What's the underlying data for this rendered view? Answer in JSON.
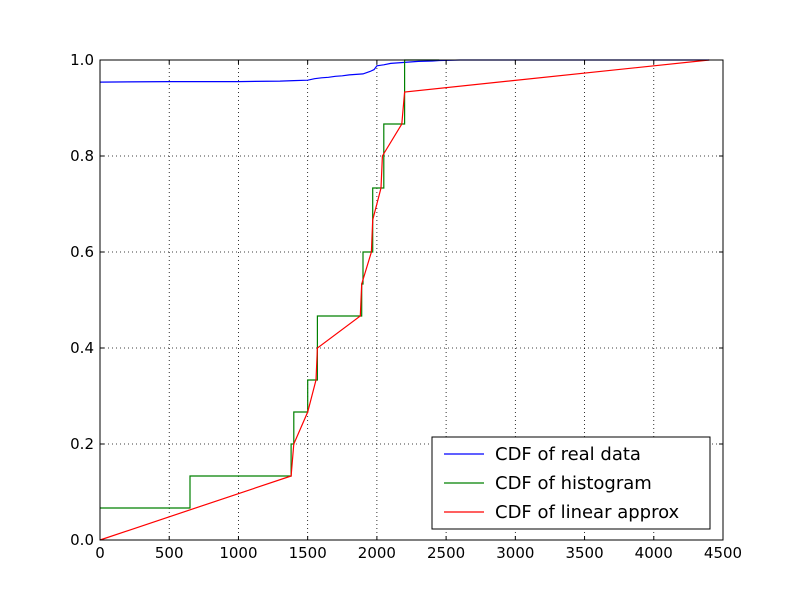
{
  "chart_data": {
    "type": "line",
    "title": "",
    "xlabel": "",
    "ylabel": "",
    "xlim": [
      0,
      4500
    ],
    "ylim": [
      0,
      1.0
    ],
    "grid": true,
    "legend_position": "lower-right",
    "x_ticks": [
      0,
      500,
      1000,
      1500,
      2000,
      2500,
      3000,
      3500,
      4000,
      4500
    ],
    "y_ticks": [
      0.0,
      0.2,
      0.4,
      0.6,
      0.8,
      1.0
    ],
    "x_tick_labels": [
      "0",
      "500",
      "1000",
      "1500",
      "2000",
      "2500",
      "3000",
      "3500",
      "4000",
      "4500"
    ],
    "y_tick_labels": [
      "0.0",
      "0.2",
      "0.4",
      "0.6",
      "0.8",
      "1.0"
    ],
    "series": [
      {
        "name": "CDF of real data",
        "color": "#0000ff",
        "style": "line",
        "x": [
          0,
          500,
          1000,
          1300,
          1400,
          1500,
          1550,
          1600,
          1650,
          1700,
          1750,
          1800,
          1850,
          1900,
          1950,
          1980,
          2000,
          2050,
          2100,
          2200,
          2300,
          2400,
          2450,
          2600,
          3000,
          3500,
          4000,
          4400
        ],
        "y": [
          0.954,
          0.955,
          0.955,
          0.956,
          0.957,
          0.958,
          0.961,
          0.963,
          0.964,
          0.966,
          0.967,
          0.969,
          0.97,
          0.971,
          0.976,
          0.98,
          0.988,
          0.99,
          0.993,
          0.995,
          0.997,
          0.998,
          0.999,
          1.0,
          1.0,
          1.0,
          1.0,
          1.0
        ]
      },
      {
        "name": "CDF of histogram",
        "color": "#008000",
        "style": "step",
        "x": [
          0,
          650,
          1380,
          1400,
          1500,
          1570,
          1890,
          1900,
          1970,
          2050,
          2200,
          2450
        ],
        "y": [
          0.0667,
          0.1333,
          0.2,
          0.2667,
          0.3333,
          0.4667,
          0.5333,
          0.6,
          0.7333,
          0.8667,
          1.0,
          1.0
        ]
      },
      {
        "name": "CDF of linear approx",
        "color": "#ff0000",
        "style": "line",
        "x": [
          0,
          1380,
          1400,
          1500,
          1560,
          1570,
          1880,
          1890,
          1960,
          1970,
          2030,
          2040,
          2180,
          2200,
          4400
        ],
        "y": [
          0.0,
          0.1333,
          0.2,
          0.2667,
          0.3333,
          0.4,
          0.4667,
          0.5333,
          0.6,
          0.6667,
          0.7333,
          0.8,
          0.8667,
          0.9333,
          1.0
        ]
      }
    ]
  }
}
